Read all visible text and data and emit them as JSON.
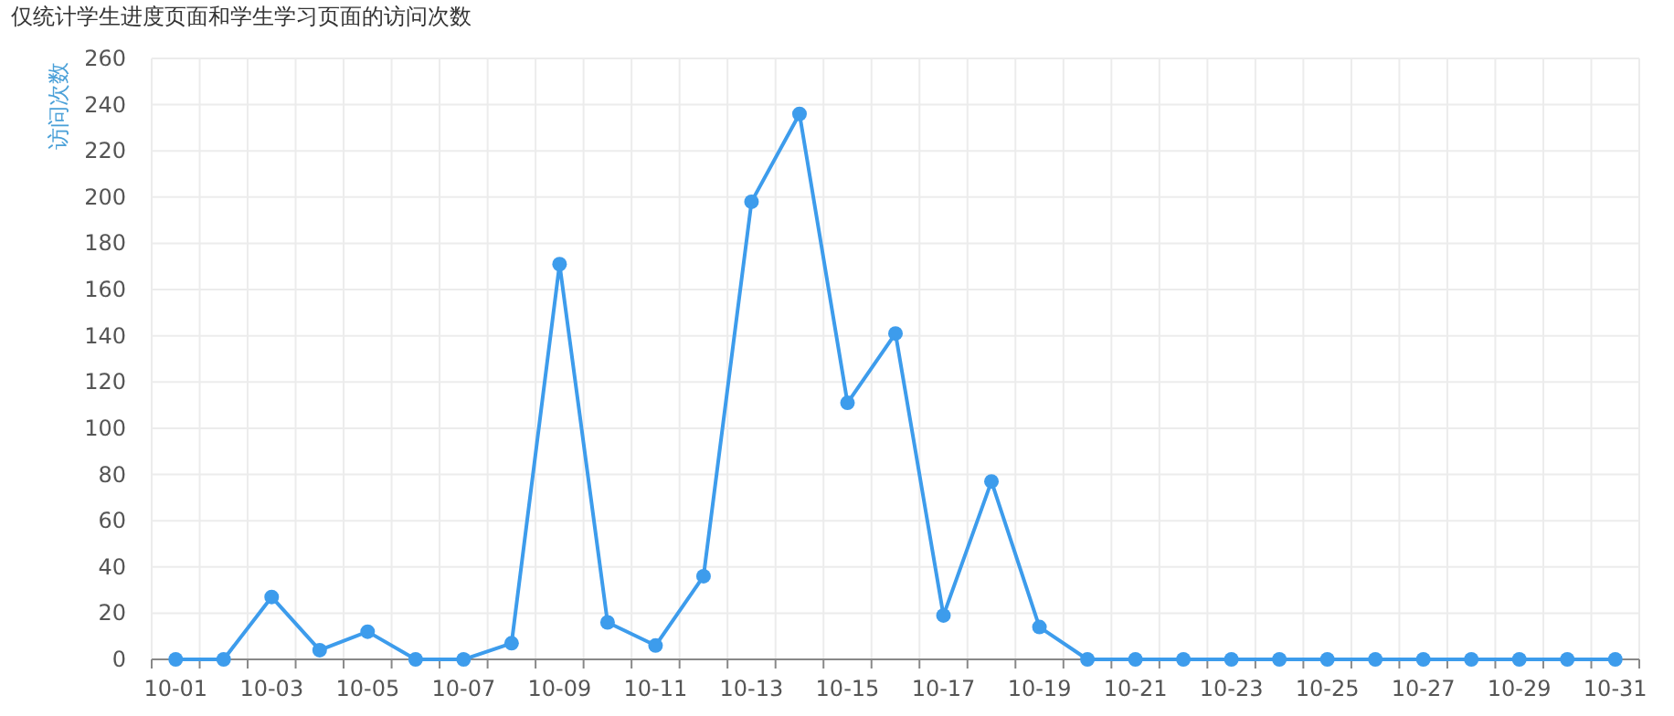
{
  "chart_data": {
    "type": "line",
    "title": "仅统计学生进度页面和学生学习页面的访问次数",
    "ylabel": "访问次数",
    "categories": [
      "10-01",
      null,
      "10-03",
      null,
      "10-05",
      null,
      "10-07",
      null,
      "10-09",
      null,
      "10-11",
      null,
      "10-13",
      null,
      "10-15",
      null,
      "10-17",
      null,
      "10-19",
      null,
      "10-21",
      null,
      "10-23",
      null,
      "10-25",
      null,
      "10-27",
      null,
      "10-29",
      null,
      "10-31"
    ],
    "series": [
      {
        "color": "#3d9cec",
        "values": [
          0,
          0,
          27,
          4,
          12,
          0,
          0,
          7,
          171,
          16,
          6,
          36,
          198,
          236,
          111,
          141,
          19,
          77,
          14,
          0,
          0,
          0,
          0,
          0,
          0,
          0,
          0,
          0,
          0,
          0,
          0
        ]
      }
    ],
    "ylim": [
      0,
      260
    ],
    "yticks": [
      0,
      20,
      40,
      60,
      80,
      100,
      120,
      140,
      160,
      180,
      200,
      220,
      240,
      260
    ],
    "grid": true,
    "marker": "circle",
    "line_style": "solid"
  }
}
